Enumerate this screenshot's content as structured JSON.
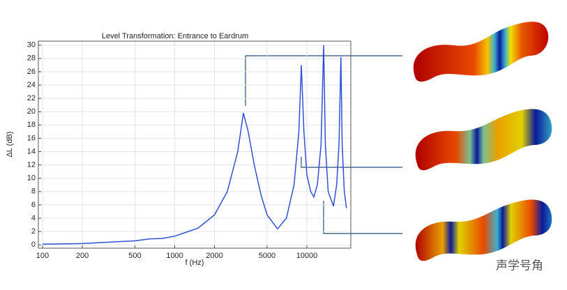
{
  "chart_data": {
    "type": "line",
    "title": "Level Transformation: Entrance to Eardrum",
    "x_label": "f (Hz)",
    "y_label": "ΔL (dB)",
    "xscale": "log",
    "grid": true,
    "color": "#2f4fd8",
    "x": [
      100,
      200,
      500,
      650,
      800,
      1000,
      1500,
      2000,
      2500,
      3000,
      3310,
      3600,
      4000,
      4500,
      5000,
      6000,
      7000,
      8000,
      8700,
      9080,
      9500,
      10000,
      10700,
      11300,
      12000,
      12800,
      13400,
      13800,
      14500,
      15900,
      16800,
      17500,
      18100,
      18500,
      19200,
      19940
    ],
    "values": [
      0.1,
      0.2,
      0.6,
      0.9,
      0.95,
      1.3,
      2.5,
      4.5,
      8,
      14,
      19.8,
      17,
      12,
      7.5,
      4.5,
      2.4,
      4,
      9,
      17,
      27,
      17,
      10.5,
      8,
      7.2,
      9,
      15,
      30,
      15,
      8,
      5.8,
      9,
      15,
      28.2,
      15,
      8,
      5.5
    ],
    "xlim": [
      93,
      21500
    ],
    "ylim": [
      -0.5,
      30.6
    ],
    "xticks": [
      100,
      200,
      500,
      1000,
      2000,
      5000,
      10000
    ],
    "yticks": [
      0,
      2,
      4,
      6,
      8,
      10,
      12,
      14,
      16,
      18,
      20,
      22,
      24,
      26,
      28,
      30
    ]
  },
  "watermark": "声学号角"
}
